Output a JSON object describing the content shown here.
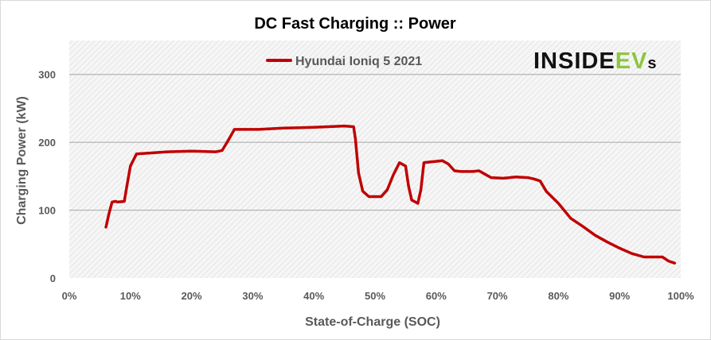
{
  "chart_data": {
    "type": "line",
    "title": "DC Fast Charging :: Power",
    "xlabel": "State-of-Charge  (SOC)",
    "ylabel": "Charging Power (kW)",
    "xlim": [
      0,
      100
    ],
    "ylim": [
      0,
      350
    ],
    "x_ticks": [
      0,
      10,
      20,
      30,
      40,
      50,
      60,
      70,
      80,
      90,
      100
    ],
    "x_tick_labels": [
      "0%",
      "10%",
      "20%",
      "30%",
      "40%",
      "50%",
      "60%",
      "70%",
      "80%",
      "90%",
      "100%"
    ],
    "y_ticks": [
      0,
      100,
      200,
      300
    ],
    "y_tick_labels": [
      "0",
      "100",
      "200",
      "300"
    ],
    "grid": true,
    "legend_position": "top-center",
    "series": [
      {
        "name": "Hyundai Ioniq 5 2021",
        "color": "#c00000",
        "x": [
          6,
          6.5,
          7,
          7.5,
          8,
          9,
          9.5,
          10,
          11,
          13,
          16,
          20,
          24,
          25,
          26,
          27,
          28,
          31,
          35,
          40,
          45,
          46.5,
          46.8,
          47.3,
          48,
          49,
          50,
          51,
          52,
          53,
          54,
          55,
          55.5,
          56,
          57,
          57.5,
          58,
          59,
          60,
          61,
          62,
          63,
          64,
          66,
          67,
          68,
          69,
          71,
          73,
          75,
          76,
          77,
          78,
          80,
          82,
          84,
          86,
          88,
          90,
          92,
          94,
          95,
          96,
          97,
          98,
          99
        ],
        "values": [
          75,
          95,
          112,
          113,
          112,
          113,
          140,
          165,
          183,
          184,
          186,
          187,
          186,
          188,
          203,
          219,
          219,
          219,
          221,
          222,
          224,
          223,
          205,
          155,
          128,
          120,
          120,
          120,
          130,
          152,
          170,
          165,
          135,
          115,
          110,
          130,
          170,
          171,
          172,
          173,
          168,
          158,
          157,
          157,
          158,
          153,
          148,
          147,
          149,
          148,
          146,
          143,
          128,
          110,
          88,
          76,
          63,
          53,
          44,
          36,
          31,
          31,
          31,
          31,
          25,
          22
        ]
      }
    ],
    "watermark": "INSIDEEVs"
  }
}
